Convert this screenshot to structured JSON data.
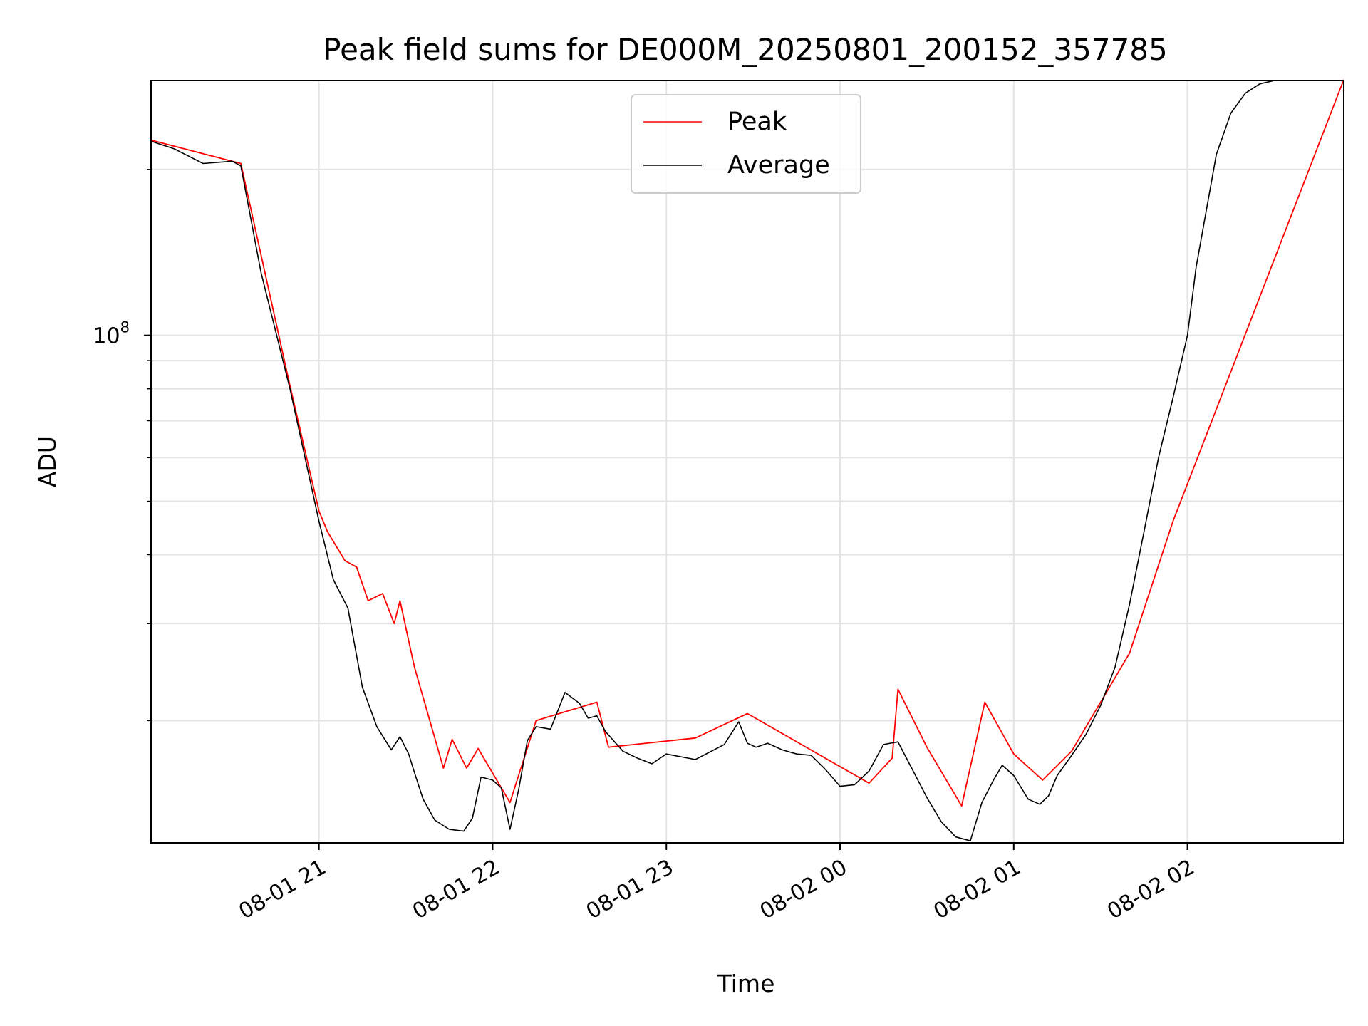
{
  "chart_data": {
    "type": "line",
    "title": "Peak field sums for DE000M_20250801_200152_357785",
    "xlabel": "Time",
    "ylabel": "ADU",
    "y_scale": "log",
    "grid": true,
    "legend_placement": "top-center",
    "x_range": [
      "08-01 20:02",
      "08-02 02:54"
    ],
    "ylim": [
      12000000,
      290000000
    ],
    "x_ticks": [
      "08-01 21",
      "08-01 22",
      "08-01 23",
      "08-02 00",
      "08-02 01",
      "08-02 02"
    ],
    "y_ticks": [
      {
        "value": 100000000,
        "base": "10",
        "exponent": "8"
      }
    ],
    "colors": {
      "peak": "#ff0000",
      "average": "#000000"
    },
    "series": [
      {
        "name": "Average",
        "x": [
          "08-01 20:02",
          "08-01 20:10",
          "08-01 20:20",
          "08-01 20:30",
          "08-01 20:33",
          "08-01 20:40",
          "08-01 20:50",
          "08-01 21:00",
          "08-01 21:05",
          "08-01 21:10",
          "08-01 21:15",
          "08-01 21:20",
          "08-01 21:25",
          "08-01 21:28",
          "08-01 21:31",
          "08-01 21:33",
          "08-01 21:36",
          "08-01 21:40",
          "08-01 21:45",
          "08-01 21:50",
          "08-01 21:53",
          "08-01 21:56",
          "08-01 22:00",
          "08-01 22:03",
          "08-01 22:06",
          "08-01 22:09",
          "08-01 22:12",
          "08-01 22:15",
          "08-01 22:20",
          "08-01 22:25",
          "08-01 22:30",
          "08-01 22:33",
          "08-01 22:36",
          "08-01 22:39",
          "08-01 22:45",
          "08-01 22:50",
          "08-01 22:55",
          "08-01 23:00",
          "08-01 23:10",
          "08-01 23:20",
          "08-01 23:25",
          "08-01 23:28",
          "08-01 23:31",
          "08-01 23:35",
          "08-01 23:40",
          "08-01 23:45",
          "08-01 23:50",
          "08-01 23:55",
          "08-02 00:00",
          "08-02 00:05",
          "08-02 00:10",
          "08-02 00:15",
          "08-02 00:20",
          "08-02 00:25",
          "08-02 00:30",
          "08-02 00:35",
          "08-02 00:40",
          "08-02 00:45",
          "08-02 00:49",
          "08-02 00:53",
          "08-02 00:56",
          "08-02 01:00",
          "08-02 01:05",
          "08-02 01:09",
          "08-02 01:12",
          "08-02 01:15",
          "08-02 01:20",
          "08-02 01:25",
          "08-02 01:30",
          "08-02 01:35",
          "08-02 01:40",
          "08-02 01:45",
          "08-02 01:50",
          "08-02 01:55",
          "08-02 02:00",
          "08-02 02:03",
          "08-02 02:10",
          "08-02 02:15",
          "08-02 02:20",
          "08-02 02:25",
          "08-02 02:30",
          "08-02 02:35",
          "08-02 02:40",
          "08-02 02:45",
          "08-02 02:54"
        ],
        "y": [
          225000000,
          218000000,
          205000000,
          207000000,
          203000000,
          130000000,
          80000000,
          46000000,
          36000000,
          32000000,
          23000000,
          19500000,
          17700000,
          18700000,
          17400000,
          16100000,
          14400000,
          13200000,
          12700000,
          12600000,
          13300000,
          15800000,
          15600000,
          15100000,
          12700000,
          15000000,
          18400000,
          19500000,
          19300000,
          22500000,
          21500000,
          20200000,
          20400000,
          19100000,
          17600000,
          17100000,
          16700000,
          17400000,
          17000000,
          18100000,
          19900000,
          18200000,
          17900000,
          18200000,
          17700000,
          17400000,
          17300000,
          16300000,
          15200000,
          15300000,
          16200000,
          18100000,
          18300000,
          16300000,
          14500000,
          13100000,
          12300000,
          12100000,
          14200000,
          15600000,
          16600000,
          15900000,
          14400000,
          14100000,
          14600000,
          15900000,
          17300000,
          18900000,
          21300000,
          25000000,
          32500000,
          44000000,
          60000000,
          77000000,
          100000000,
          133000000,
          213000000,
          253000000,
          275000000,
          286000000,
          290000000,
          290000000,
          290000000,
          290000000,
          290000000
        ]
      },
      {
        "name": "Peak",
        "x": [
          "08-01 20:02",
          "08-01 20:33",
          "08-01 20:50",
          "08-01 21:00",
          "08-01 21:03",
          "08-01 21:09",
          "08-01 21:13",
          "08-01 21:17",
          "08-01 21:22",
          "08-01 21:26",
          "08-01 21:28",
          "08-01 21:33",
          "08-01 21:43",
          "08-01 21:46",
          "08-01 21:51",
          "08-01 21:55",
          "08-01 22:06",
          "08-01 22:15",
          "08-01 22:36",
          "08-01 22:40",
          "08-01 23:10",
          "08-01 23:28",
          "08-02 00:10",
          "08-02 00:18",
          "08-02 00:20",
          "08-02 00:30",
          "08-02 00:42",
          "08-02 00:50",
          "08-02 01:00",
          "08-02 01:10",
          "08-02 01:20",
          "08-02 01:40",
          "08-02 01:55",
          "08-02 02:54"
        ],
        "y": [
          226000000,
          205000000,
          81000000,
          48000000,
          44000000,
          39000000,
          38000000,
          33000000,
          34000000,
          30000000,
          33000000,
          25000000,
          16400000,
          18500000,
          16400000,
          17800000,
          14200000,
          20000000,
          21600000,
          17900000,
          18600000,
          20600000,
          15400000,
          17100000,
          22800000,
          17900000,
          14000000,
          21600000,
          17400000,
          15600000,
          17600000,
          26500000,
          46000000,
          291000000
        ]
      }
    ]
  }
}
